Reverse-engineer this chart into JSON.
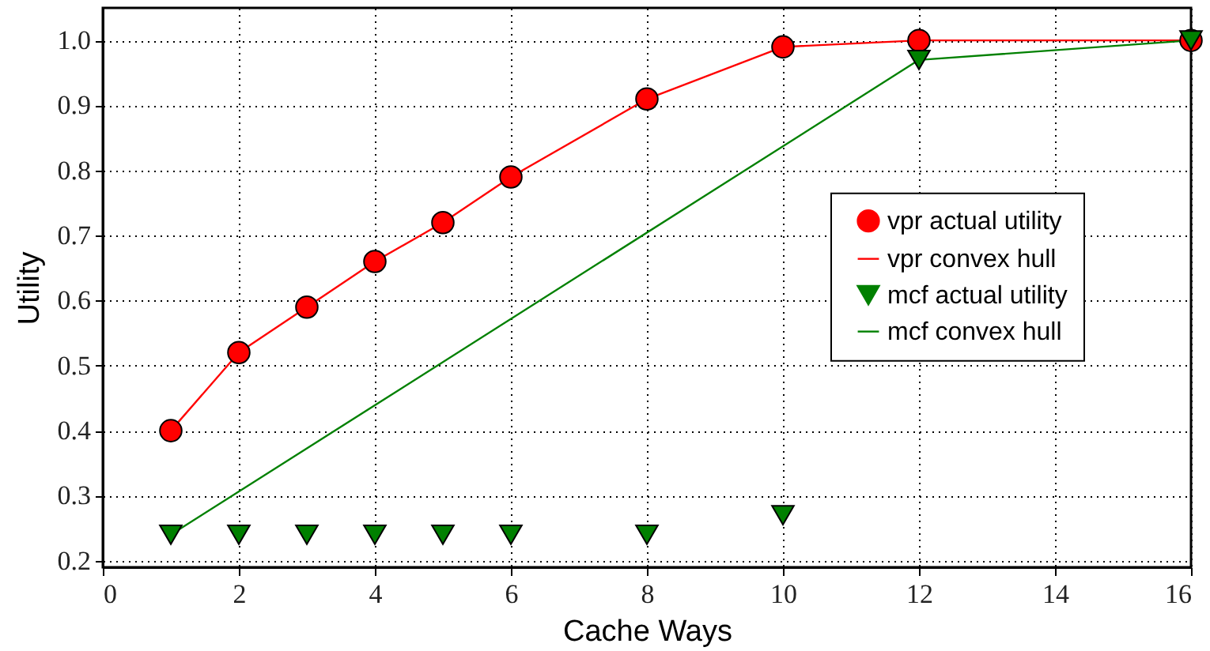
{
  "chart_data": {
    "type": "line",
    "xlabel": "Cache Ways",
    "ylabel": "Utility",
    "xlim": [
      0,
      16
    ],
    "xticks": [
      0,
      2,
      4,
      6,
      8,
      10,
      12,
      14,
      16
    ],
    "ylim": [
      0.19,
      1.05
    ],
    "yticks": [
      {
        "value": 0.2,
        "label": "0.2"
      },
      {
        "value": 0.3,
        "label": "0.3"
      },
      {
        "value": 0.4,
        "label": "0.4"
      },
      {
        "value": 0.5,
        "label": "0.5"
      },
      {
        "value": 0.6,
        "label": "0.6"
      },
      {
        "value": 0.7,
        "label": "0.7"
      },
      {
        "value": 0.8,
        "label": "0.8"
      },
      {
        "value": 0.9,
        "label": "0.9"
      },
      {
        "value": 1.0,
        "label": "1.0"
      }
    ],
    "grid": true,
    "legend": "right",
    "series": [
      {
        "name": "vpr actual utility",
        "type": "scatter",
        "marker": "circle",
        "color": "#ff0000",
        "x": [
          1,
          2,
          3,
          4,
          5,
          6,
          8,
          10,
          12,
          16
        ],
        "values": [
          0.4,
          0.52,
          0.59,
          0.66,
          0.72,
          0.79,
          0.91,
          0.99,
          1.0,
          1.0
        ]
      },
      {
        "name": "vpr convex hull",
        "color": "#ff0000",
        "x": [
          1,
          2,
          3,
          4,
          5,
          6,
          8,
          10,
          12,
          16
        ],
        "values": [
          0.4,
          0.52,
          0.59,
          0.66,
          0.72,
          0.79,
          0.91,
          0.99,
          1.0,
          1.0
        ]
      },
      {
        "name": "mcf actual utility",
        "type": "scatter",
        "marker": "triangle",
        "color": "#008000",
        "x": [
          1,
          2,
          3,
          4,
          5,
          6,
          8,
          10,
          12,
          16
        ],
        "values": [
          0.24,
          0.24,
          0.24,
          0.24,
          0.24,
          0.24,
          0.24,
          0.27,
          0.97,
          1.0
        ]
      },
      {
        "name": "mcf convex hull",
        "color": "#008000",
        "x": [
          1,
          12,
          16
        ],
        "values": [
          0.24,
          0.97,
          1.0
        ]
      }
    ]
  }
}
